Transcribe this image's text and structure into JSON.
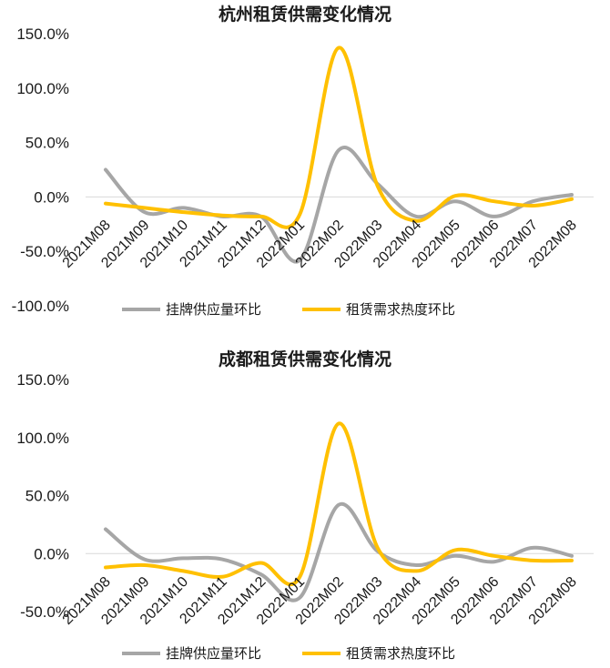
{
  "chart_data": [
    {
      "type": "line",
      "title": "杭州租赁供需变化情况",
      "categories": [
        "2021M08",
        "2021M09",
        "2021M10",
        "2021M11",
        "2021M12",
        "2022M01",
        "2022M02",
        "2022M03",
        "2022M04",
        "2022M05",
        "2022M06",
        "2022M07",
        "2022M08"
      ],
      "y_ticks": [
        "150.0%",
        "100.0%",
        "50.0%",
        "0.0%",
        "-50.0%",
        "-100.0%"
      ],
      "ylim": [
        -100,
        150
      ],
      "grid": false,
      "legend_position": "bottom",
      "series": [
        {
          "name": "挂牌供应量环比",
          "color": "#a6a6a6",
          "values": [
            25,
            -14,
            -10,
            -18,
            -18,
            -58,
            43,
            12,
            -18,
            -4,
            -18,
            -4,
            2
          ]
        },
        {
          "name": "租赁需求热度环比",
          "color": "#ffc000",
          "values": [
            -6,
            -10,
            -14,
            -17,
            -18,
            -16,
            137,
            10,
            -22,
            1,
            -4,
            -8,
            -2
          ]
        }
      ]
    },
    {
      "type": "line",
      "title": "成都租赁供需变化情况",
      "categories": [
        "2021M08",
        "2021M09",
        "2021M10",
        "2021M11",
        "2021M12",
        "2022M01",
        "2022M02",
        "2022M03",
        "2022M04",
        "2022M05",
        "2022M06",
        "2022M07",
        "2022M08"
      ],
      "y_ticks": [
        "150.0%",
        "100.0%",
        "50.0%",
        "0.0%",
        "-50.0%"
      ],
      "ylim": [
        -50,
        150
      ],
      "grid": false,
      "legend_position": "bottom",
      "series": [
        {
          "name": "挂牌供应量环比",
          "color": "#a6a6a6",
          "values": [
            21,
            -5,
            -4,
            -5,
            -18,
            -38,
            42,
            2,
            -10,
            -2,
            -7,
            5,
            -2
          ]
        },
        {
          "name": "租赁需求热度环比",
          "color": "#ffc000",
          "values": [
            -12,
            -10,
            -15,
            -20,
            -8,
            -20,
            112,
            5,
            -15,
            3,
            -2,
            -6,
            -6
          ]
        }
      ]
    }
  ]
}
